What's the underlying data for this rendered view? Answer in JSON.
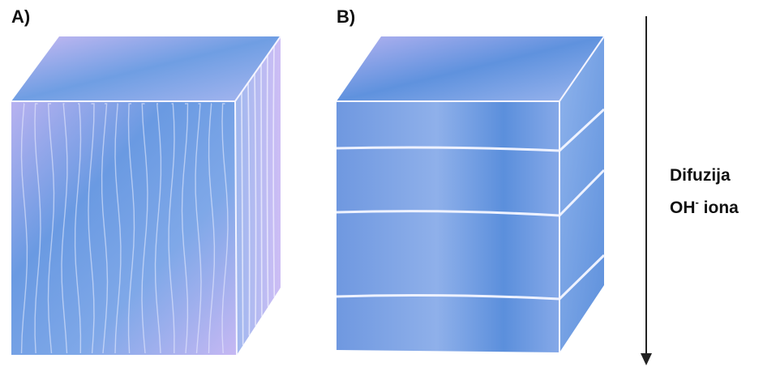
{
  "panels": {
    "a_label": "A)",
    "b_label": "B)"
  },
  "diffusion": {
    "line1": "Difuzija",
    "line2_main": "OH",
    "line2_sup": "-",
    "line2_rest": " iona"
  },
  "colors": {
    "block_light": "#c7b9f2",
    "block_dark": "#5b8fdc",
    "arrow": "#222222"
  }
}
